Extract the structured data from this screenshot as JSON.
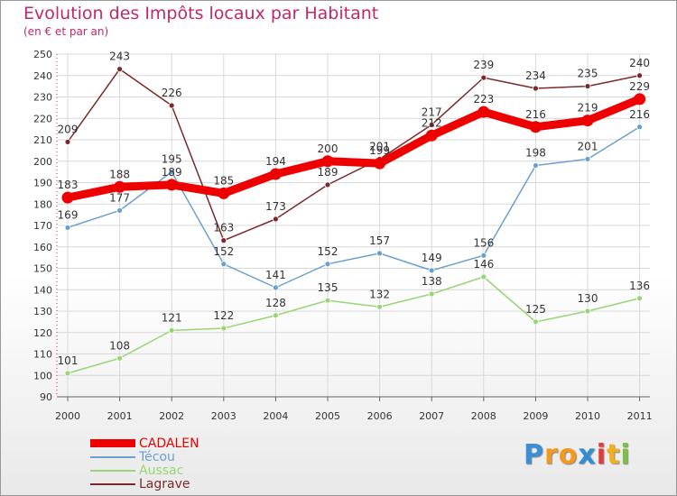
{
  "title": "Evolution des Impôts locaux par Habitant",
  "subtitle": "(en € et par an)",
  "chart_data": {
    "type": "line",
    "x": [
      "2000",
      "2001",
      "2002",
      "2003",
      "2004",
      "2005",
      "2006",
      "2007",
      "2008",
      "2009",
      "2010",
      "2011"
    ],
    "ylim": [
      90,
      250
    ],
    "yticks": [
      90,
      100,
      110,
      120,
      130,
      140,
      150,
      160,
      170,
      180,
      190,
      200,
      210,
      220,
      230,
      240,
      250
    ],
    "grid": true,
    "legend_position": "bottom-left",
    "series": [
      {
        "name": "Lagrave",
        "color": "#7a2a2a",
        "values": [
          209,
          243,
          226,
          163,
          173,
          189,
          201,
          217,
          239,
          234,
          235,
          240
        ]
      },
      {
        "name": "Aussac",
        "color": "#99d477",
        "values": [
          101,
          108,
          121,
          122,
          128,
          135,
          132,
          138,
          146,
          125,
          130,
          136
        ]
      },
      {
        "name": "Técou",
        "color": "#6aa0d0",
        "values": [
          169,
          177,
          195,
          152,
          141,
          152,
          157,
          149,
          156,
          198,
          201,
          216
        ]
      },
      {
        "name": "CADALEN",
        "color": "#ee0000",
        "values": [
          183,
          188,
          189,
          185,
          194,
          200,
          199,
          212,
          223,
          216,
          219,
          229
        ]
      }
    ]
  },
  "legend": {
    "items": [
      {
        "label": "CADALEN",
        "color": "#ee0000"
      },
      {
        "label": "Técou",
        "color": "#6aa0d0"
      },
      {
        "label": "Aussac",
        "color": "#99d477"
      },
      {
        "label": "Lagrave",
        "color": "#7a2a2a"
      }
    ]
  },
  "logo": {
    "letters": [
      "P",
      "r",
      "o",
      "x",
      "i",
      "t",
      "i"
    ],
    "colors": [
      "#3a8fd6",
      "#f39a1e",
      "#f39a1e",
      "#2f8fd6",
      "#e83a3a",
      "#f0b020",
      "#7ac043"
    ]
  }
}
